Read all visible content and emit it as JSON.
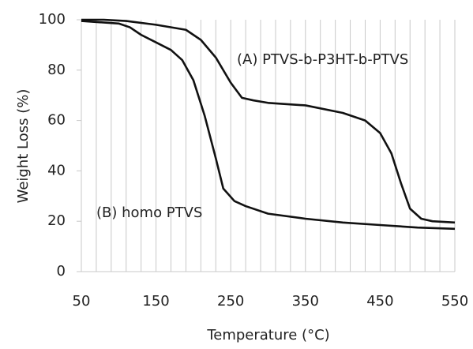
{
  "chart_data": {
    "type": "line",
    "x_label": "Temperature (°C)",
    "y_label": "Weight Loss (%)",
    "xlim": [
      50,
      550
    ],
    "xticks": [
      50,
      150,
      250,
      350,
      450,
      550
    ],
    "xgrid": [
      50,
      70,
      90,
      110,
      130,
      150,
      170,
      190,
      210,
      230,
      250,
      270,
      290,
      310,
      330,
      350,
      370,
      390,
      410,
      430,
      450,
      470,
      490,
      510,
      530,
      550
    ],
    "ylim": [
      0,
      100
    ],
    "yticks": [
      0,
      20,
      40,
      60,
      80,
      100
    ],
    "grid": true,
    "series": [
      {
        "name": "(A) PTVS-b-P3HT-b-PTVS",
        "color": "#111111",
        "x": [
          50,
          80,
          110,
          150,
          190,
          210,
          230,
          250,
          265,
          280,
          300,
          350,
          400,
          430,
          450,
          465,
          478,
          490,
          505,
          520,
          550
        ],
        "values": [
          100,
          100,
          99.5,
          98,
          96,
          92,
          85,
          75,
          69,
          68,
          67,
          66,
          63,
          60,
          55,
          47,
          35,
          25,
          21,
          20,
          19.5
        ]
      },
      {
        "name": "(B) homo PTVS",
        "color": "#111111",
        "x": [
          50,
          100,
          115,
          130,
          150,
          170,
          185,
          200,
          215,
          230,
          240,
          255,
          270,
          300,
          350,
          400,
          450,
          500,
          550
        ],
        "values": [
          99.5,
          98.5,
          97,
          94,
          91,
          88,
          84,
          76,
          62,
          45,
          33,
          28,
          26,
          23,
          21,
          19.5,
          18.5,
          17.5,
          17
        ]
      }
    ]
  }
}
